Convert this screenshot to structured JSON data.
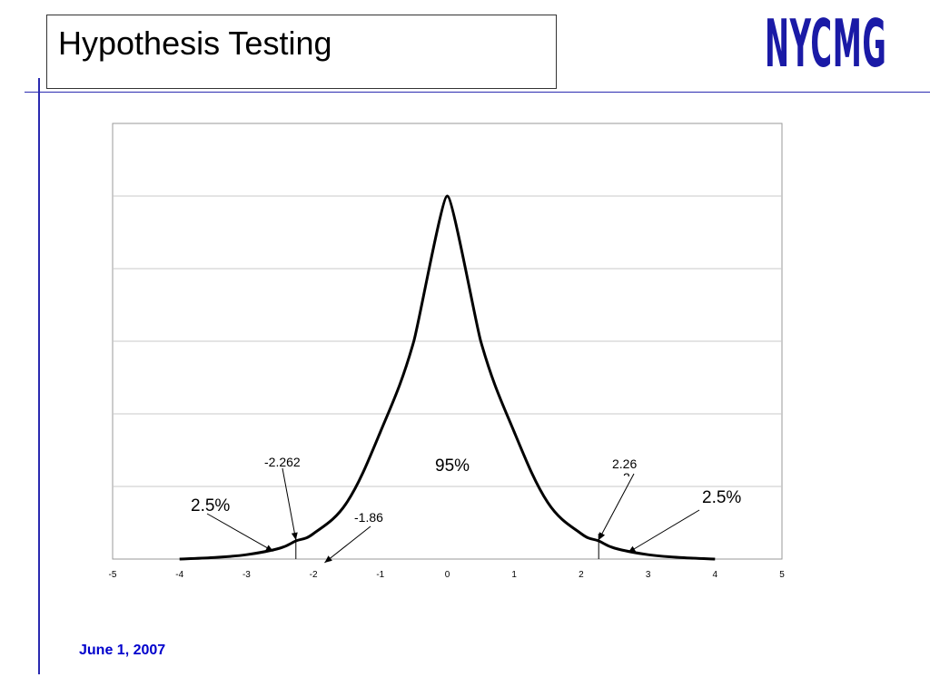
{
  "slide": {
    "title": "Hypothesis Testing",
    "logo_text": "NYCMG",
    "footer_date": "June 1, 2007",
    "accent_color": "#1a1aa6",
    "footer_color": "#0000cc",
    "rule_color": "#2a2ab0"
  },
  "chart_data": {
    "type": "line",
    "title": "",
    "xlabel": "",
    "ylabel": "",
    "xlim": [
      -5,
      5
    ],
    "ylim": [
      0,
      6
    ],
    "x_ticks": [
      "-5",
      "-4",
      "-3",
      "-2",
      "-1",
      "0",
      "1",
      "2",
      "3",
      "4",
      "5"
    ],
    "y_tick_labels": [],
    "grid": "horizontal",
    "legend": "none",
    "series": [
      {
        "x": [
          -4.0,
          -3.5,
          -3.0,
          -2.5,
          -2.262,
          -2.0,
          -1.5,
          -1.0,
          -0.5,
          0.0,
          0.5,
          1.0,
          1.5,
          2.0,
          2.262,
          2.5,
          3.0,
          3.5,
          4.0
        ],
        "y": [
          0.0,
          0.02,
          0.06,
          0.15,
          0.25,
          0.35,
          0.78,
          1.75,
          3.0,
          5.0,
          3.0,
          1.75,
          0.78,
          0.35,
          0.25,
          0.15,
          0.06,
          0.02,
          0.0
        ]
      }
    ],
    "critical_lines": [
      -2.262,
      2.262
    ],
    "annotations": {
      "left_critical": {
        "text": "-2.262",
        "x": -2.262
      },
      "right_critical": {
        "text": "2.26",
        "text2": "2",
        "x": 2.262
      },
      "statistic": {
        "text": "-1.86",
        "x": -1.86
      },
      "center_area": {
        "text": "95%"
      },
      "left_tail": {
        "text": "2.5%"
      },
      "right_tail": {
        "text": "2.5%"
      }
    }
  }
}
